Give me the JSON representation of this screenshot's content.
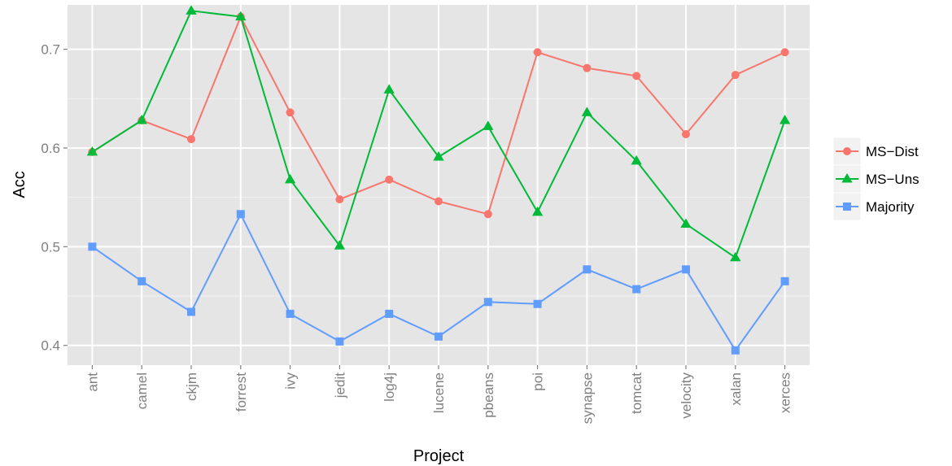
{
  "chart_data": {
    "type": "line",
    "xlabel": "Project",
    "ylabel": "Acc",
    "categories": [
      "ant",
      "camel",
      "ckjm",
      "forrest",
      "ivy",
      "jedit",
      "log4j",
      "lucene",
      "pbeans",
      "poi",
      "synapse",
      "tomcat",
      "velocity",
      "xalan",
      "xerces"
    ],
    "ylim": [
      0.38,
      0.745
    ],
    "yticks": [
      0.4,
      0.5,
      0.6,
      0.7
    ],
    "ytick_labels": [
      "0.4",
      "0.5",
      "0.6",
      "0.7"
    ],
    "grid": true,
    "legend_position": "right",
    "series": [
      {
        "name": "MS−Dist",
        "color": "#F8766D",
        "marker": "circle",
        "values": [
          0.596,
          0.628,
          0.609,
          0.733,
          0.636,
          0.548,
          0.568,
          0.546,
          0.533,
          0.697,
          0.681,
          0.673,
          0.614,
          0.674,
          0.697
        ]
      },
      {
        "name": "MS−Uns",
        "color": "#00BA38",
        "marker": "triangle",
        "values": [
          0.596,
          0.628,
          0.739,
          0.733,
          0.568,
          0.501,
          0.659,
          0.591,
          0.622,
          0.535,
          0.636,
          0.587,
          0.523,
          0.489,
          0.628
        ]
      },
      {
        "name": "Majority",
        "color": "#619CFF",
        "marker": "square",
        "values": [
          0.5,
          0.465,
          0.434,
          0.533,
          0.432,
          0.404,
          0.432,
          0.409,
          0.444,
          0.442,
          0.477,
          0.457,
          0.477,
          0.395,
          0.465
        ]
      }
    ]
  }
}
